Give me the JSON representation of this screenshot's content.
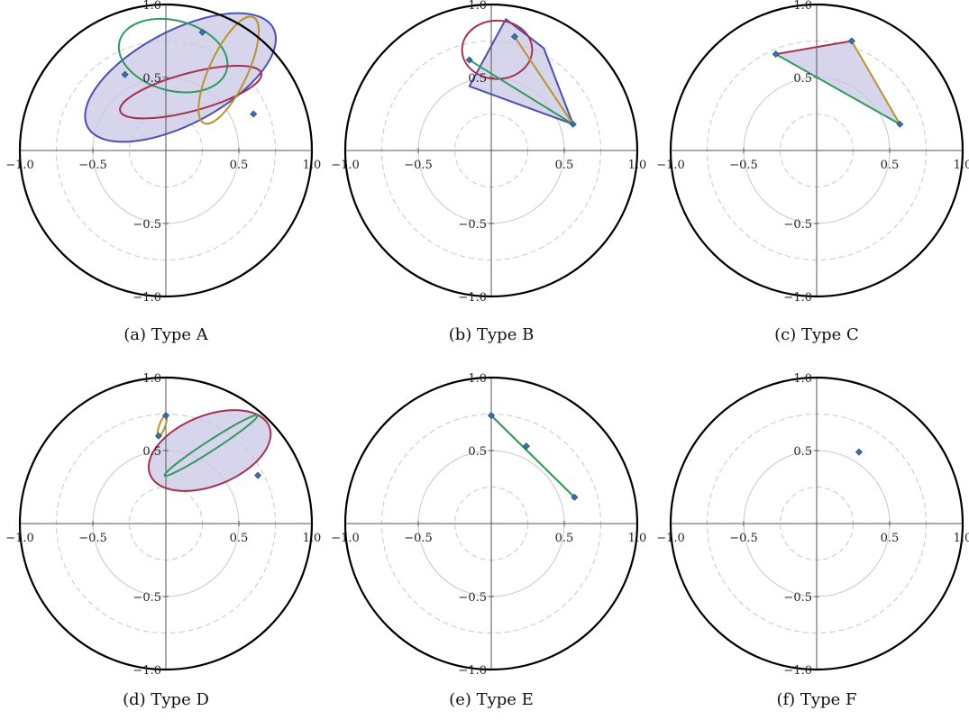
{
  "chart_data": [
    {
      "type": "scatter",
      "caption": "(a) Type A",
      "xlim": [
        -1,
        1
      ],
      "ylim": [
        -1,
        1
      ],
      "x_ticks": [
        "−1.0",
        "−0.5",
        "0.5",
        "1.0"
      ],
      "y_ticks": [
        "−1.0",
        "−0.5",
        "0.5",
        "1.0"
      ],
      "points": [
        [
          0.25,
          0.81
        ],
        [
          -0.28,
          0.52
        ],
        [
          0.6,
          0.25
        ]
      ],
      "hull": {
        "cx": 0.1,
        "cy": 0.5,
        "rx": 0.72,
        "ry": 0.32,
        "angle_deg": -28
      },
      "edges": [
        {
          "color": "#2e9a5e",
          "cx": 0.05,
          "cy": 0.65,
          "rx": 0.38,
          "ry": 0.24,
          "angle_deg": 15
        },
        {
          "color": "#a5304f",
          "cx": 0.17,
          "cy": 0.4,
          "rx": 0.5,
          "ry": 0.13,
          "angle_deg": -15
        },
        {
          "color": "#b59530",
          "cx": 0.43,
          "cy": 0.55,
          "rx": 0.4,
          "ry": 0.13,
          "angle_deg": -65
        }
      ]
    },
    {
      "type": "scatter",
      "caption": "(b) Type B",
      "xlim": [
        -1,
        1
      ],
      "ylim": [
        -1,
        1
      ],
      "x_ticks": [
        "−1.0",
        "−0.5",
        "0.5",
        "1.0"
      ],
      "y_ticks": [
        "−1.0",
        "−0.5",
        "0.5",
        "1.0"
      ],
      "points": [
        [
          -0.15,
          0.62
        ],
        [
          0.16,
          0.78
        ],
        [
          0.56,
          0.18
        ]
      ],
      "hull_poly": [
        [
          -0.15,
          0.44
        ],
        [
          0.56,
          0.18
        ],
        [
          0.36,
          0.7
        ],
        [
          0.1,
          0.9
        ]
      ],
      "edges": [
        {
          "color": "#a5304f",
          "cx": 0.04,
          "cy": 0.69,
          "rx": 0.24,
          "ry": 0.2,
          "angle_deg": 0
        },
        {
          "color": "#2e9a5e",
          "line": [
            [
              -0.15,
              0.62
            ],
            [
              0.56,
              0.18
            ]
          ]
        },
        {
          "color": "#b59530",
          "line": [
            [
              0.16,
              0.78
            ],
            [
              0.56,
              0.18
            ]
          ]
        }
      ]
    },
    {
      "type": "scatter",
      "caption": "(c) Type C",
      "xlim": [
        -1,
        1
      ],
      "ylim": [
        -1,
        1
      ],
      "x_ticks": [
        "−1.0",
        "−0.5",
        "0.5",
        "1.0"
      ],
      "y_ticks": [
        "−1.0",
        "−0.5",
        "0.5",
        "1.0"
      ],
      "points": [
        [
          -0.28,
          0.66
        ],
        [
          0.24,
          0.75
        ],
        [
          0.57,
          0.18
        ]
      ],
      "triangle": true,
      "edges": [
        {
          "color": "#a5304f",
          "line": [
            [
              -0.28,
              0.66
            ],
            [
              0.24,
              0.75
            ]
          ]
        },
        {
          "color": "#2e9a5e",
          "line": [
            [
              -0.28,
              0.66
            ],
            [
              0.57,
              0.18
            ]
          ]
        },
        {
          "color": "#b59530",
          "line": [
            [
              0.24,
              0.75
            ],
            [
              0.57,
              0.18
            ]
          ]
        }
      ]
    },
    {
      "type": "scatter",
      "caption": "(d) Type D",
      "xlim": [
        -1,
        1
      ],
      "ylim": [
        -1,
        1
      ],
      "x_ticks": [
        "−1.0",
        "−0.5",
        "0.5",
        "1.0"
      ],
      "y_ticks": [
        "−1.0",
        "−0.5",
        "0.5",
        "1.0"
      ],
      "points": [
        [
          0.0,
          0.74
        ],
        [
          -0.05,
          0.6
        ],
        [
          0.63,
          0.33
        ]
      ],
      "hull": {
        "cx": 0.3,
        "cy": 0.5,
        "rx": 0.44,
        "ry": 0.24,
        "angle_deg": -22
      },
      "hull_stroke": "#a5304f",
      "edges": [
        {
          "color": "#2e9a5e",
          "cx": 0.31,
          "cy": 0.535,
          "rx": 0.38,
          "ry": 0.035,
          "angle_deg": -33
        },
        {
          "color": "#b59530",
          "cx": -0.025,
          "cy": 0.67,
          "rx": 0.075,
          "ry": 0.02,
          "angle_deg": -70
        }
      ]
    },
    {
      "type": "scatter",
      "caption": "(e) Type E",
      "xlim": [
        -1,
        1
      ],
      "ylim": [
        -1,
        1
      ],
      "x_ticks": [
        "−1.0",
        "−0.5",
        "0.5",
        "1.0"
      ],
      "y_ticks": [
        "−1.0",
        "−0.5",
        "0.5",
        "1.0"
      ],
      "points": [
        [
          0.0,
          0.74
        ],
        [
          0.24,
          0.53
        ],
        [
          0.57,
          0.18
        ]
      ],
      "edges": [
        {
          "color": "#b59530",
          "line": [
            [
              0.0,
              0.74
            ],
            [
              0.57,
              0.18
            ]
          ]
        },
        {
          "color": "#2e9a5e",
          "line": [
            [
              0.0,
              0.74
            ],
            [
              0.57,
              0.18
            ]
          ]
        }
      ]
    },
    {
      "type": "scatter",
      "caption": "(f) Type F",
      "xlim": [
        -1,
        1
      ],
      "ylim": [
        -1,
        1
      ],
      "x_ticks": [
        "−1.0",
        "−0.5",
        "0.5",
        "1.0"
      ],
      "y_ticks": [
        "−1.0",
        "−0.5",
        "0.5",
        "1.0"
      ],
      "points": [
        [
          0.29,
          0.49
        ]
      ],
      "edges": []
    }
  ],
  "colors": {
    "fill": "#c9c7e6",
    "hull_stroke": "#4a4fb2",
    "point": "#3a6fb0",
    "grid": "#c8c8c8",
    "circle": "#000000"
  }
}
